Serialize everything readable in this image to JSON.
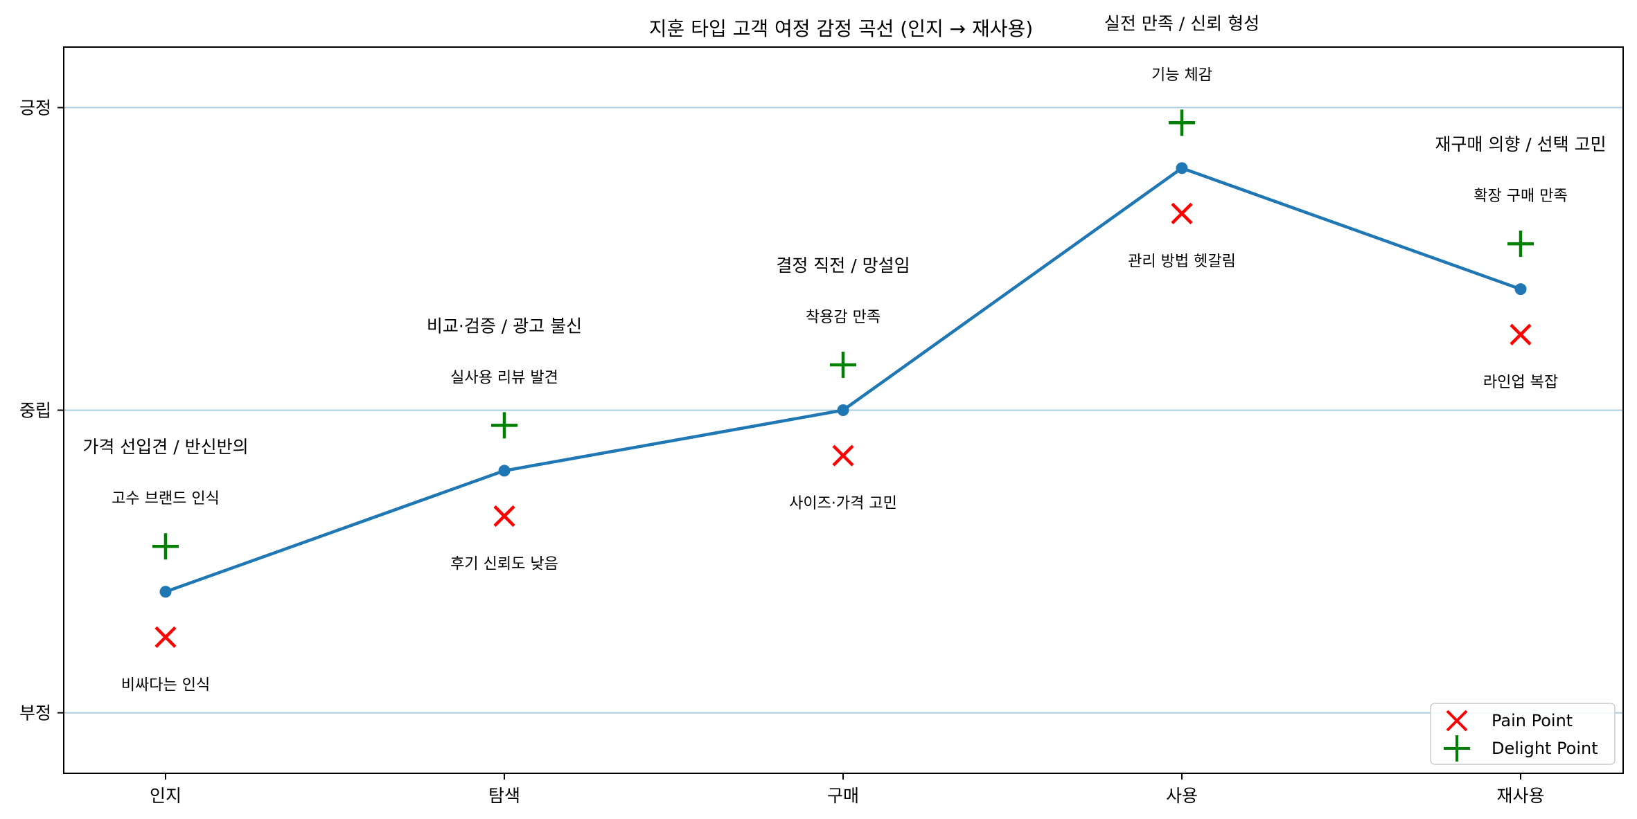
{
  "chart_data": {
    "type": "line",
    "title": "지훈 타입 고객 여정 감정 곡선 (인지 → 재사용)",
    "xlabel": "",
    "ylabel": "",
    "categories": [
      "인지",
      "탐색",
      "구매",
      "사용",
      "재사용"
    ],
    "ylim": [
      -1.2,
      1.2
    ],
    "yticks": [
      {
        "value": -1,
        "label": "부정"
      },
      {
        "value": 0,
        "label": "중립"
      },
      {
        "value": 1,
        "label": "긍정"
      }
    ],
    "grid": "horizontal at y ticks",
    "series": [
      {
        "values": [
          -0.6,
          -0.2,
          0.0,
          0.8,
          0.4
        ]
      }
    ],
    "stage_labels": [
      "가격 선입견 / 반신반의",
      "비교·검증 / 광고 불신",
      "결정 직전 / 망설임",
      "실전 만족 / 신뢰 형성",
      "재구매 의향 / 선택 고민"
    ],
    "delight_points": {
      "name": "Delight Point",
      "values": [
        -0.45,
        -0.05,
        0.15,
        0.95,
        0.55
      ],
      "labels": [
        "고수 브랜드 인식",
        "실사용 리뷰 발견",
        "착용감 만족",
        "기능 체감",
        "확장 구매 만족"
      ]
    },
    "pain_points": {
      "name": "Pain Point",
      "values": [
        -0.75,
        -0.35,
        -0.15,
        0.65,
        0.25
      ],
      "labels": [
        "비싸다는 인식",
        "후기 신뢰도 낮음",
        "사이즈·가격 고민",
        "관리 방법 헷갈림",
        "라인업 복잡"
      ]
    },
    "legend": {
      "position": "bottom-right",
      "entries": [
        "Pain Point",
        "Delight Point"
      ]
    },
    "colors": {
      "line": "#1f77b4",
      "pain": "#ff0000",
      "delight": "#008000",
      "grid": "#a6cde0"
    }
  }
}
